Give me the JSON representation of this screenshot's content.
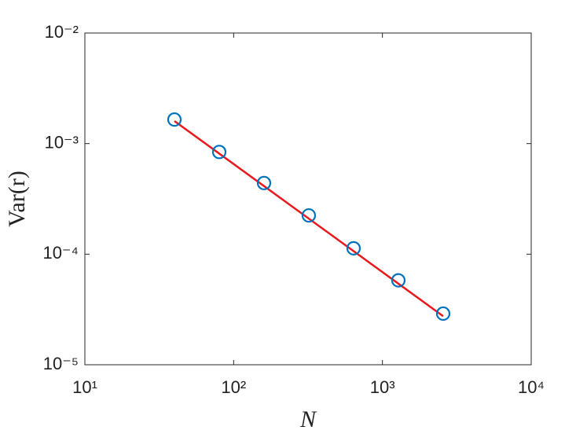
{
  "chart_data": {
    "type": "scatter",
    "xlabel": "N",
    "ylabel": "Var(r)",
    "xscale": "log",
    "yscale": "log",
    "grid": false,
    "xlim": [
      10,
      10000
    ],
    "xticks": [
      {
        "value": 10,
        "label": "10¹"
      },
      {
        "value": 100,
        "label": "10²"
      },
      {
        "value": 1000,
        "label": "10³"
      },
      {
        "value": 10000,
        "label": "10⁴"
      }
    ],
    "ylim": [
      1e-05,
      0.01
    ],
    "yticks": [
      {
        "value": 1e-05,
        "label": "10⁻⁵"
      },
      {
        "value": 0.0001,
        "label": "10⁻⁴"
      },
      {
        "value": 0.001,
        "label": "10⁻³"
      },
      {
        "value": 0.01,
        "label": "10⁻²"
      }
    ],
    "series": [
      {
        "style": "marker",
        "color": "#0072bd",
        "x": [
          40,
          80,
          160,
          320,
          640,
          1280,
          2560
        ],
        "values": [
          0.00165,
          0.00084,
          0.00044,
          0.000224,
          0.000113,
          5.8e-05,
          2.9e-05
        ]
      },
      {
        "style": "line",
        "color": "#e8191c",
        "x": [
          40,
          2560
        ],
        "values": [
          0.0016,
          2.75e-05
        ]
      }
    ]
  }
}
